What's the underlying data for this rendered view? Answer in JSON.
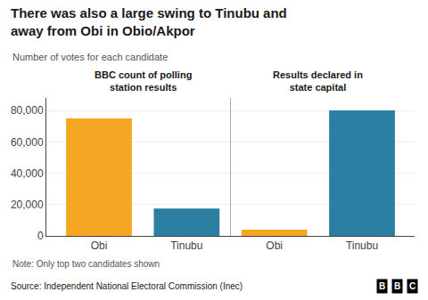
{
  "chart_data": {
    "type": "bar",
    "title": "There was also a large swing to Tinubu and\naway from Obi in Obio/Akpor",
    "subtitle": "Number of votes for each candidate",
    "groups": [
      {
        "label": "BBC count of polling\nstation results",
        "span": 2
      },
      {
        "label": "Results declared in\nstate capital",
        "span": 2
      }
    ],
    "categories": [
      "Obi",
      "Tinubu",
      "Obi",
      "Tinubu"
    ],
    "values": [
      75000,
      17500,
      4000,
      80000
    ],
    "colors": [
      "#F5A623",
      "#2B7FA3",
      "#F5A623",
      "#2B7FA3"
    ],
    "ylim": [
      0,
      88000
    ],
    "yticks": [
      0,
      {
        "value": 20000,
        "label": "20,000"
      },
      {
        "value": 40000,
        "label": "40,000"
      },
      {
        "value": 60000,
        "label": "60,000"
      },
      {
        "value": 80000,
        "label": "80,000"
      }
    ],
    "grid": true,
    "note": "Note: Only top two candidates shown",
    "source": "Source: Independent National Electoral Commission (Inec)",
    "logo": "BBC"
  }
}
